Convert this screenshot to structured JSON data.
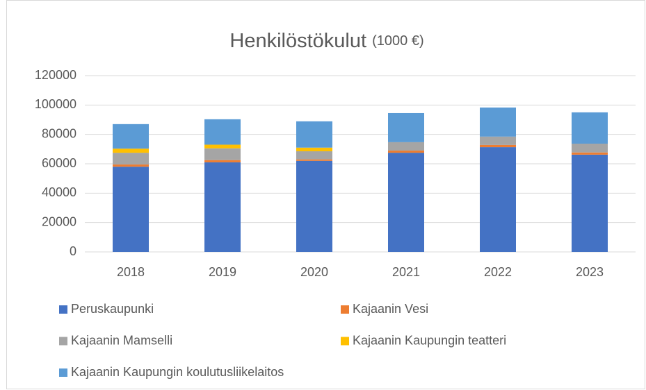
{
  "chart_data": {
    "type": "stacked_bar",
    "title": "Henkilöstökulut",
    "title_unit": "(1000 €)",
    "categories": [
      "2018",
      "2019",
      "2020",
      "2021",
      "2022",
      "2023"
    ],
    "series": [
      {
        "name": "Peruskaupunki",
        "color": "#4472c4",
        "values": [
          58000,
          61000,
          62000,
          67500,
          71300,
          66200
        ]
      },
      {
        "name": "Kajaanin Vesi",
        "color": "#ed7d31",
        "values": [
          1500,
          1500,
          1000,
          1500,
          1500,
          1500
        ]
      },
      {
        "name": "Kajaanin Mamselli",
        "color": "#a5a5a5",
        "values": [
          8000,
          8000,
          5500,
          5700,
          5700,
          6000
        ]
      },
      {
        "name": "Kajaanin Kaupungin teatteri",
        "color": "#ffc000",
        "values": [
          2800,
          2500,
          2500,
          0,
          0,
          0
        ]
      },
      {
        "name": "Kajaanin Kaupungin koulutusliikelaitos",
        "color": "#5b9bd5",
        "values": [
          16700,
          17300,
          17900,
          19800,
          19800,
          21300
        ]
      }
    ],
    "ylim": [
      0,
      120000
    ],
    "yticks": [
      0,
      20000,
      40000,
      60000,
      80000,
      100000,
      120000
    ],
    "grid": true
  }
}
